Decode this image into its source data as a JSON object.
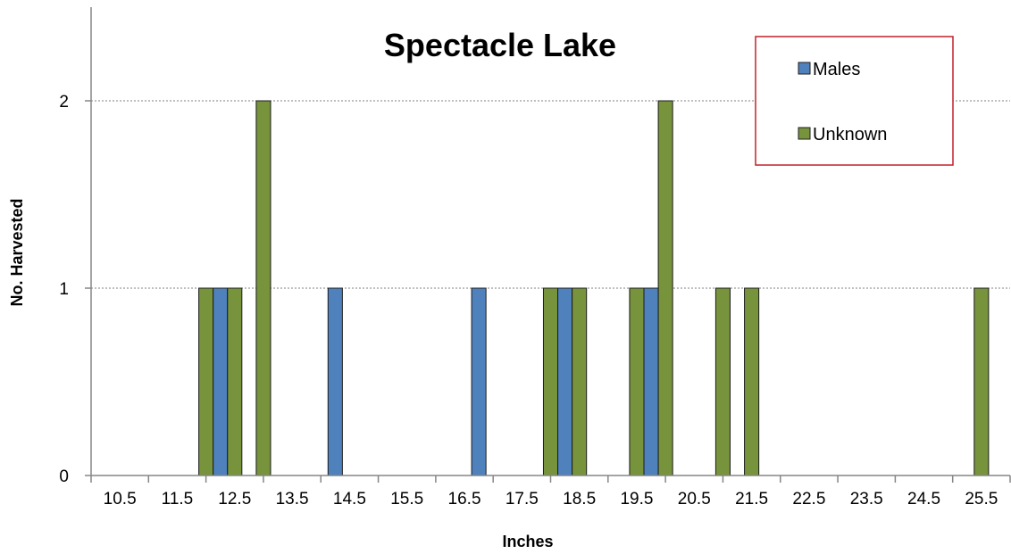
{
  "chart_data": {
    "type": "bar",
    "title": "Spectacle Lake",
    "xlabel": "Inches",
    "ylabel": "No. Harvested",
    "categories": [
      "10.5",
      "11.5",
      "12.5",
      "13.5",
      "14.5",
      "15.5",
      "16.5",
      "17.5",
      "18.5",
      "19.5",
      "20.5",
      "21.5",
      "22.5",
      "23.5",
      "24.5",
      "25.5"
    ],
    "y_ticks": [
      "0",
      "1",
      "2"
    ],
    "ylim": [
      0,
      2.5
    ],
    "grid": "horizontal dotted",
    "legend_position": "top-right",
    "series": [
      {
        "name": "Males",
        "color": "#4f81bd"
      },
      {
        "name": "Unknown",
        "color": "#77933c"
      }
    ],
    "bars": [
      {
        "x": 12.0,
        "series": "Unknown",
        "value": 1
      },
      {
        "x": 12.25,
        "series": "Males",
        "value": 1
      },
      {
        "x": 12.5,
        "series": "Unknown",
        "value": 1
      },
      {
        "x": 13.0,
        "series": "Unknown",
        "value": 2
      },
      {
        "x": 14.25,
        "series": "Males",
        "value": 1
      },
      {
        "x": 16.75,
        "series": "Males",
        "value": 1
      },
      {
        "x": 18.0,
        "series": "Unknown",
        "value": 1
      },
      {
        "x": 18.25,
        "series": "Males",
        "value": 1
      },
      {
        "x": 18.5,
        "series": "Unknown",
        "value": 1
      },
      {
        "x": 19.5,
        "series": "Unknown",
        "value": 1
      },
      {
        "x": 19.75,
        "series": "Males",
        "value": 1
      },
      {
        "x": 20.0,
        "series": "Unknown",
        "value": 2
      },
      {
        "x": 21.0,
        "series": "Unknown",
        "value": 1
      },
      {
        "x": 21.5,
        "series": "Unknown",
        "value": 1
      },
      {
        "x": 25.5,
        "series": "Unknown",
        "value": 1
      }
    ]
  }
}
